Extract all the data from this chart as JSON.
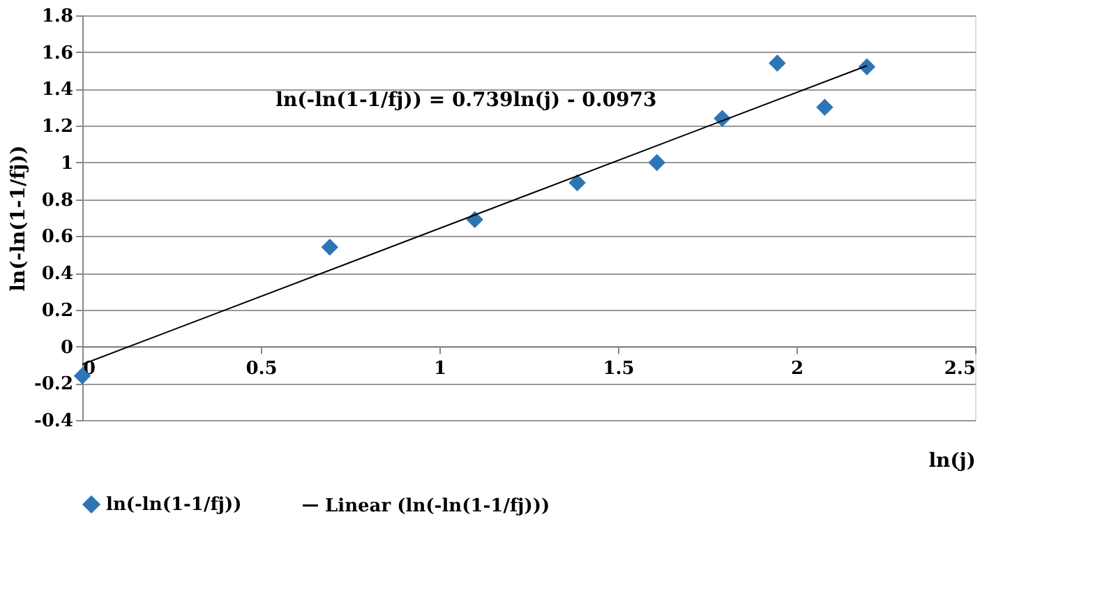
{
  "chart_data": {
    "type": "scatter",
    "xlabel": "ln(j)",
    "ylabel": "ln(-ln(1-1/fj))",
    "x": [
      0,
      0.693,
      1.099,
      1.386,
      1.609,
      1.792,
      1.946,
      2.079,
      2.197
    ],
    "series": [
      {
        "name": "ln(-ln(1-1/fj))",
        "color": "#2e75b6",
        "values": [
          -0.16,
          0.54,
          0.69,
          0.89,
          1.0,
          1.24,
          1.54,
          1.3,
          1.52
        ],
        "marker": "diamond"
      },
      {
        "name": "Linear (ln(-ln(1-1/fj)))",
        "type": "line",
        "color": "#000000",
        "x": [
          0,
          2.197
        ],
        "values": [
          -0.0973,
          1.526
        ],
        "marker": "none",
        "line_style": "solid"
      }
    ],
    "annotations": [
      "ln(-ln(1-1/fj)) = 0.739ln(j) - 0.0973"
    ],
    "xlim": [
      0,
      2.5
    ],
    "xticks": [
      0,
      0.5,
      1,
      1.5,
      2,
      2.5
    ],
    "ylim": [
      -0.4,
      1.8
    ],
    "yticks": [
      -0.4,
      -0.2,
      0,
      0.2,
      0.4,
      0.6,
      0.8,
      1,
      1.2,
      1.4,
      1.6,
      1.8
    ],
    "grid": "y",
    "legend": "bottom"
  }
}
